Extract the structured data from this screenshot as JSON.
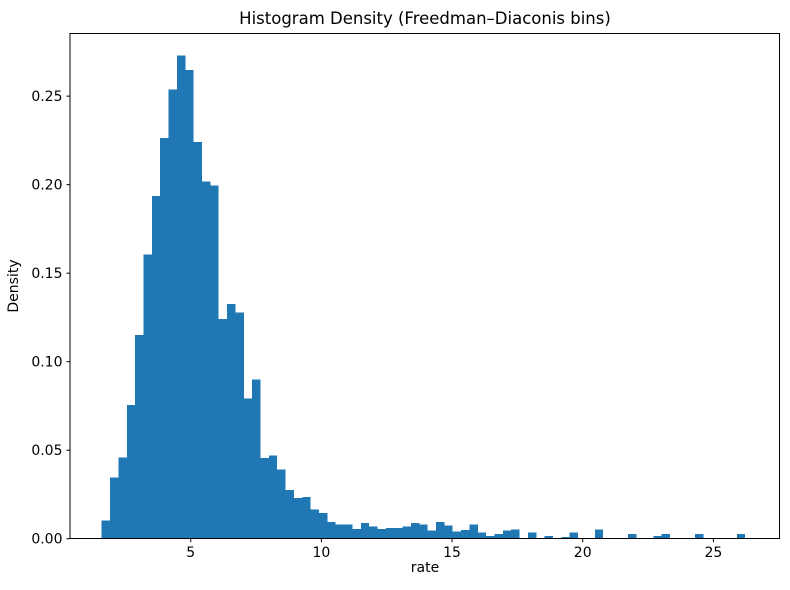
{
  "figure": {
    "background": "#ffffff",
    "bar_color": "#1f77b4",
    "axis_color": "#000000",
    "text_color": "#000000"
  },
  "chart_data": {
    "type": "bar",
    "subtype": "histogram-density",
    "title": "Histogram Density (Freedman–Diaconis bins)",
    "xlabel": "rate",
    "ylabel": "Density",
    "bin_start": 1.594,
    "bin_width": 0.3198,
    "densities": [
      0.0103,
      0.0345,
      0.046,
      0.0755,
      0.115,
      0.1605,
      0.1937,
      0.2264,
      0.2537,
      0.2731,
      0.2647,
      0.2242,
      0.2018,
      0.1996,
      0.124,
      0.1325,
      0.1278,
      0.0793,
      0.09,
      0.0455,
      0.047,
      0.039,
      0.0275,
      0.023,
      0.0235,
      0.0165,
      0.0145,
      0.0095,
      0.008,
      0.008,
      0.0055,
      0.009,
      0.007,
      0.0055,
      0.006,
      0.006,
      0.007,
      0.009,
      0.008,
      0.0045,
      0.0095,
      0.0075,
      0.004,
      0.005,
      0.008,
      0.0035,
      0.0015,
      0.0026,
      0.0045,
      0.0052,
      0,
      0.0035,
      0,
      0.0015,
      0,
      0.001,
      0.0035,
      0,
      0,
      0.0052,
      0,
      0,
      0,
      0.0026,
      0,
      0,
      0.0015,
      0.0026,
      0,
      0,
      0,
      0.0026,
      0,
      0,
      0,
      0,
      0.0026,
      0
    ],
    "xlim": [
      0.38,
      27.53
    ],
    "ylim": [
      0,
      0.2855
    ],
    "xticks": [
      5,
      10,
      15,
      20,
      25
    ],
    "yticks": [
      0,
      0.05,
      0.1,
      0.15,
      0.2,
      0.25
    ],
    "grid": false,
    "legend": null
  }
}
